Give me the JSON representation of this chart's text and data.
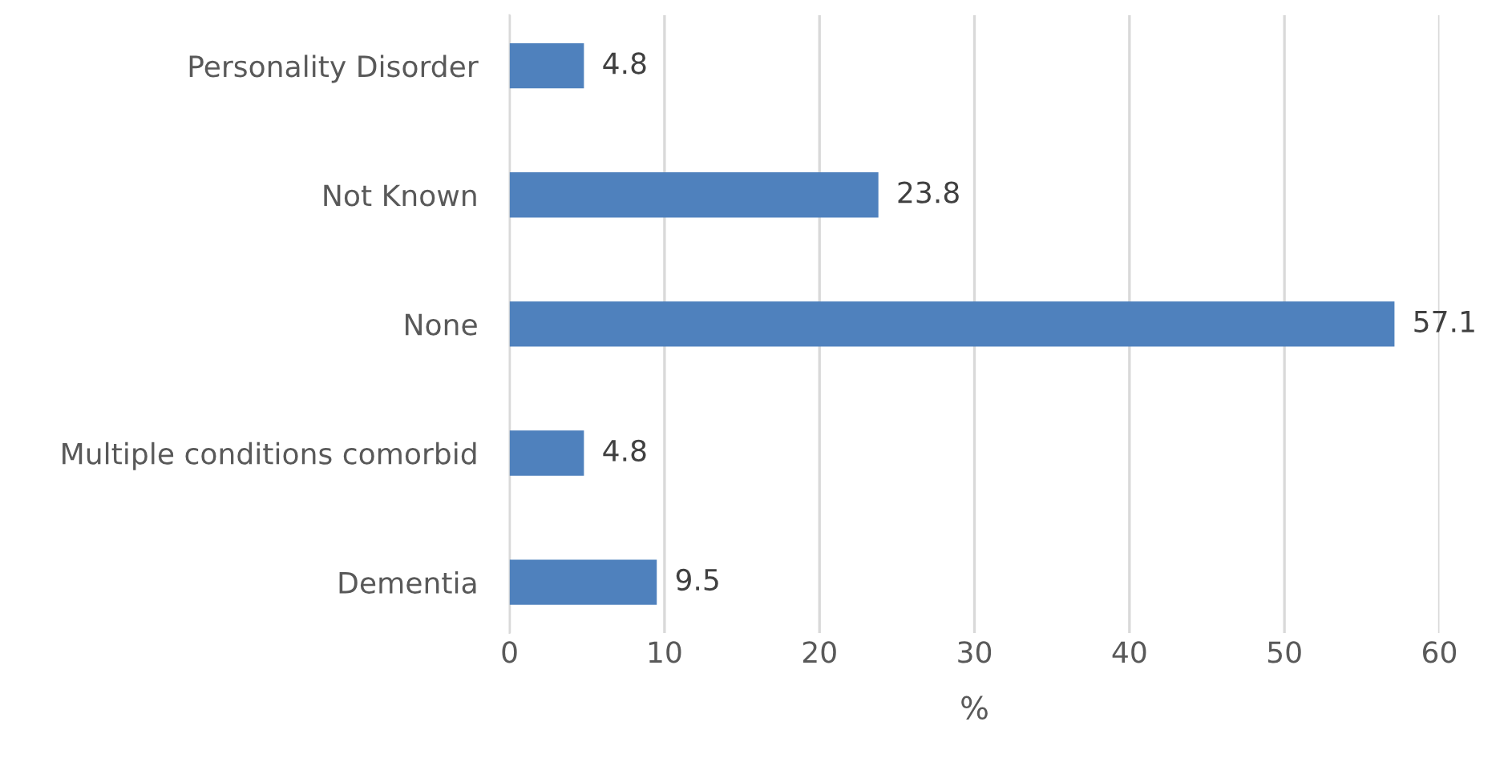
{
  "chart_data": {
    "type": "bar",
    "orientation": "horizontal",
    "categories": [
      "Personality Disorder",
      "Not Known",
      "None",
      "Multiple conditions comorbid",
      "Dementia"
    ],
    "values": [
      4.8,
      23.8,
      57.1,
      4.8,
      9.5
    ],
    "color": "#4f81bd",
    "xlim": [
      0,
      60
    ],
    "xticks": [
      0,
      10,
      20,
      30,
      40,
      50,
      60
    ],
    "xlabel": "%",
    "grid": "x",
    "data_labels": true,
    "legend": false
  }
}
